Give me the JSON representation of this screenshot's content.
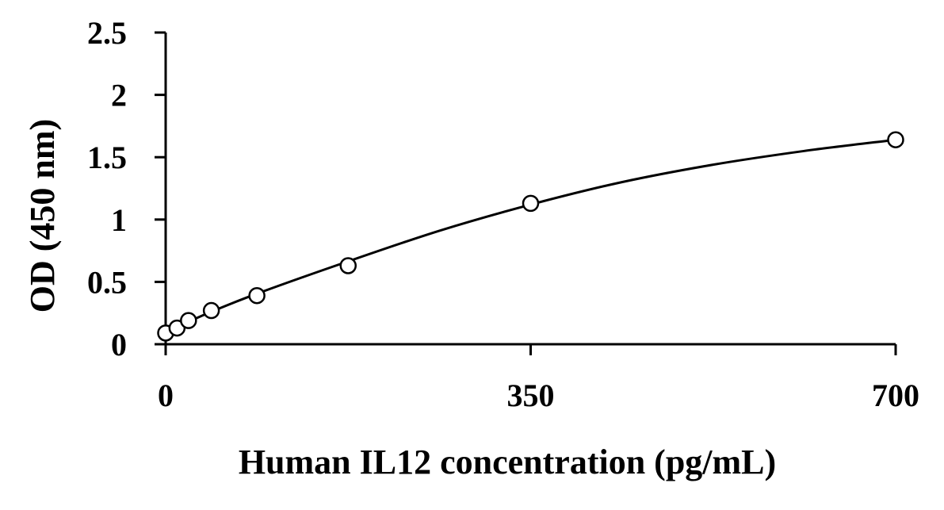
{
  "chart_data": {
    "type": "scatter",
    "title": "",
    "xlabel": "Human IL12 concentration (pg/mL)",
    "ylabel": "OD (450 nm)",
    "xlim": [
      0,
      700
    ],
    "ylim": [
      0,
      2.5
    ],
    "x_ticks": [
      0,
      350,
      700
    ],
    "x_tick_labels": [
      "0",
      "350",
      "700"
    ],
    "y_ticks": [
      0,
      0.5,
      1,
      1.5,
      2,
      2.5
    ],
    "y_tick_labels": [
      "0",
      "0.5",
      "1",
      "1.5",
      "2",
      "2.5"
    ],
    "grid": false,
    "legend": "none",
    "series": [
      {
        "marker": "open-circle",
        "x": [
          0,
          10.9,
          21.9,
          43.8,
          87.5,
          175,
          350,
          700
        ],
        "y": [
          0.09,
          0.13,
          0.19,
          0.27,
          0.39,
          0.63,
          1.13,
          1.64
        ]
      }
    ],
    "fit_curve": {
      "style": "smooth-line",
      "x": [
        0,
        10.9,
        21.9,
        43.8,
        87.5,
        175,
        262.5,
        350,
        437.5,
        525,
        612.5,
        700
      ],
      "y": [
        0.09,
        0.135,
        0.18,
        0.26,
        0.405,
        0.665,
        0.91,
        1.12,
        1.3,
        1.44,
        1.55,
        1.64
      ]
    },
    "colors": {
      "axis": "#000000",
      "marker": "#000000",
      "line": "#000000",
      "background": "#ffffff"
    }
  }
}
